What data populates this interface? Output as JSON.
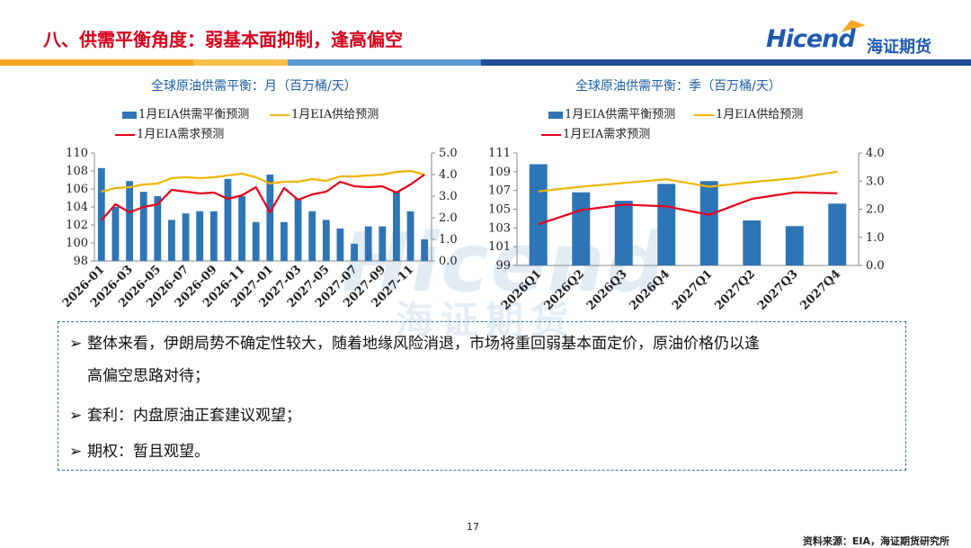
{
  "header": {
    "title": "八、供需平衡角度：弱基本面抑制，逢高偏空",
    "logo_en": "Hicend",
    "logo_cn": "海证期货"
  },
  "colors": {
    "bar": "#2e75b6",
    "supply": "#f0b400",
    "demand": "#e8001a",
    "title_red": "#d8001b",
    "title_blue": "#1f5ea8",
    "band": [
      "#f5a623",
      "#f5a623",
      "#5b9bd5",
      "#1f4e96"
    ]
  },
  "legend": {
    "balance": "1月EIA供需平衡预测",
    "supply": "1月EIA供给预测",
    "demand": "1月EIA需求预测"
  },
  "watermark": {
    "en": "Hicend",
    "cn": "海证期货",
    "reg": "®"
  },
  "chart_data": [
    {
      "type": "bar",
      "title": "全球原油供需平衡：月（百万桶/天）",
      "categories": [
        "2026-01",
        "2026-02",
        "2026-03",
        "2026-04",
        "2026-05",
        "2026-06",
        "2026-07",
        "2026-08",
        "2026-09",
        "2026-10",
        "2026-11",
        "2026-12",
        "2027-01",
        "2027-02",
        "2027-03",
        "2027-04",
        "2027-05",
        "2027-06",
        "2027-07",
        "2027-08",
        "2027-09",
        "2027-10",
        "2027-11",
        "2027-12"
      ],
      "tick_labels": [
        "2026-01",
        "2026-03",
        "2026-05",
        "2026-07",
        "2026-09",
        "2026-11",
        "2027-01",
        "2027-03",
        "2027-05",
        "2027-07",
        "2027-09",
        "2027-11"
      ],
      "left_axis": {
        "min": 98,
        "max": 110,
        "ticks": [
          "110",
          "108",
          "106",
          "104",
          "102",
          "100",
          "98"
        ]
      },
      "right_axis": {
        "min": 0,
        "max": 5,
        "ticks": [
          "5.0",
          "4.0",
          "3.0",
          "2.0",
          "1.0",
          "0.0"
        ]
      },
      "series": [
        {
          "name": "1月EIA供需平衡预测",
          "type": "bar",
          "axis": "right",
          "values": [
            4.3,
            2.5,
            3.7,
            3.2,
            3.0,
            1.9,
            2.2,
            2.3,
            2.3,
            3.8,
            3.0,
            1.8,
            4.0,
            1.8,
            2.9,
            2.3,
            1.9,
            1.5,
            0.8,
            1.6,
            1.6,
            3.2,
            2.3,
            1.0
          ]
        },
        {
          "name": "1月EIA供给预测",
          "type": "line",
          "axis": "left",
          "values": [
            105.7,
            106.1,
            106.2,
            106.5,
            106.6,
            107.2,
            107.3,
            107.2,
            107.3,
            107.5,
            107.7,
            107.3,
            106.6,
            106.8,
            106.8,
            107.1,
            106.9,
            107.4,
            107.4,
            107.5,
            107.6,
            107.9,
            108.0,
            107.6
          ]
        },
        {
          "name": "1月EIA需求预测",
          "type": "line",
          "axis": "left",
          "values": [
            102.5,
            104.3,
            103.4,
            104.0,
            104.3,
            105.9,
            105.7,
            105.5,
            105.6,
            104.9,
            105.3,
            106.2,
            103.4,
            106.1,
            104.8,
            105.4,
            105.7,
            106.8,
            106.3,
            106.2,
            106.3,
            105.6,
            106.5,
            107.6
          ]
        }
      ]
    },
    {
      "type": "bar",
      "title": "全球原油供需平衡：季（百万桶/天）",
      "categories": [
        "2026Q1",
        "2026Q2",
        "2026Q3",
        "2026Q4",
        "2027Q1",
        "2027Q2",
        "2027Q3",
        "2027Q4"
      ],
      "tick_labels": [
        "2026Q1",
        "2026Q2",
        "2026Q3",
        "2026Q4",
        "2027Q1",
        "2027Q2",
        "2027Q3",
        "2027Q4"
      ],
      "left_axis": {
        "min": 99,
        "max": 111,
        "ticks": [
          "111",
          "109",
          "107",
          "105",
          "103",
          "101",
          "99"
        ]
      },
      "right_axis": {
        "min": 0,
        "max": 4,
        "ticks": [
          "4.0",
          "3.0",
          "2.0",
          "1.0",
          "0.0"
        ]
      },
      "series": [
        {
          "name": "1月EIA供需平衡预测",
          "type": "bar",
          "axis": "right",
          "values": [
            3.6,
            2.6,
            2.3,
            2.9,
            3.0,
            1.6,
            1.4,
            2.2
          ]
        },
        {
          "name": "1月EIA供给预测",
          "type": "line",
          "axis": "left",
          "values": [
            106.9,
            107.4,
            107.8,
            108.2,
            107.4,
            107.9,
            108.3,
            109.0
          ]
        },
        {
          "name": "1月EIA需求预测",
          "type": "line",
          "axis": "left",
          "values": [
            103.4,
            104.9,
            105.5,
            105.3,
            104.4,
            106.1,
            106.8,
            106.7
          ]
        }
      ]
    }
  ],
  "bullets": [
    {
      "line1": "整体来看，伊朗局势不确定性较大，随着地缘风险消退，市场将重回弱基本面定价，原油价格仍以逢",
      "line2": "高偏空思路对待；"
    },
    {
      "line1": "套利：内盘原油正套建议观望；"
    },
    {
      "line1": "期权：暂且观望。"
    }
  ],
  "bullet_marker": "➢",
  "page_number": "17",
  "source": "资料来源：EIA，海证期货研究所"
}
